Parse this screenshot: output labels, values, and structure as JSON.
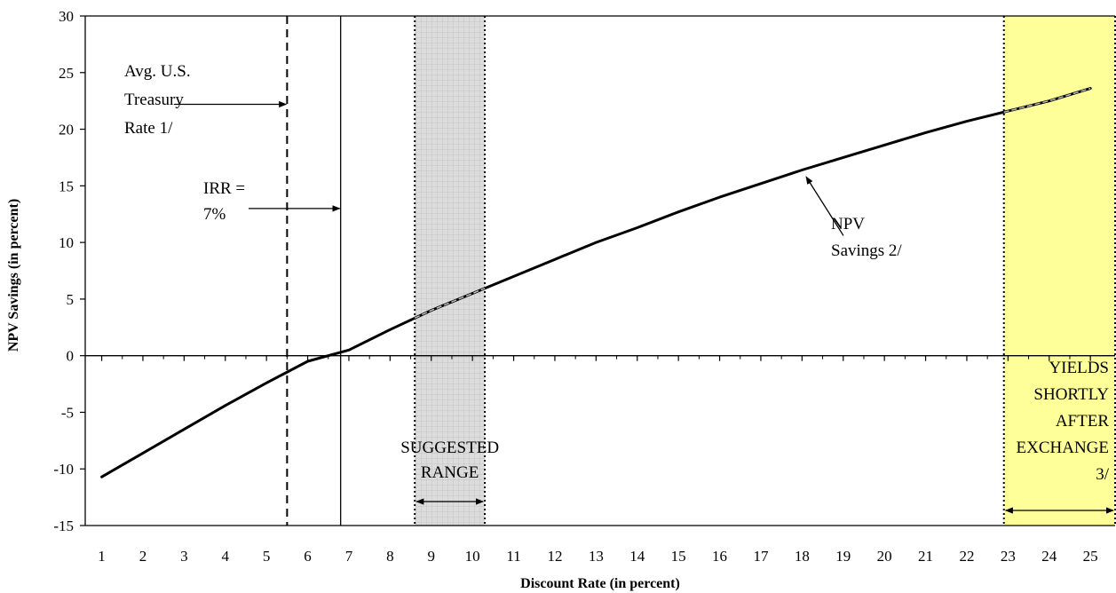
{
  "chart_data": {
    "type": "line",
    "title": "",
    "xlabel": "Discount Rate (in percent)",
    "ylabel": "NPV Savings (in percent)",
    "xlim": [
      0.6,
      25.6
    ],
    "ylim": [
      -15,
      30
    ],
    "x_ticks": [
      "1",
      "2",
      "3",
      "4",
      "5",
      "6",
      "7",
      "8",
      "9",
      "10",
      "11",
      "12",
      "13",
      "14",
      "15",
      "16",
      "17",
      "18",
      "19",
      "20",
      "21",
      "22",
      "23",
      "24",
      "25"
    ],
    "y_ticks": [
      "30",
      "25",
      "20",
      "15",
      "10",
      "5",
      "0",
      "-5",
      "-10",
      "-15"
    ],
    "grid": false,
    "series": [
      {
        "name": "",
        "x": [
          1,
          2,
          3,
          4,
          5,
          6,
          7,
          8,
          9,
          10,
          11,
          12,
          13,
          14,
          15,
          16,
          17,
          18,
          19,
          20,
          21,
          22,
          23,
          24,
          25
        ],
        "values": [
          -10.7,
          -8.6,
          -6.5,
          -4.4,
          -2.4,
          -0.5,
          0.5,
          2.3,
          4.0,
          5.5,
          7.0,
          8.5,
          10.0,
          11.3,
          12.7,
          14.0,
          15.2,
          16.4,
          17.5,
          18.6,
          19.7,
          20.7,
          21.6,
          22.5,
          23.6
        ]
      }
    ],
    "highlight_color": "#bdbdbd",
    "reference_lines": [
      {
        "x": 5.5,
        "style": "dashed"
      },
      {
        "x": 6.8,
        "style": "solid"
      }
    ],
    "shaded_regions": [
      {
        "x_from": 8.6,
        "x_to": 10.3,
        "color": "#d9d9d9",
        "hatch": true,
        "border": "dotted"
      },
      {
        "x_from": 22.9,
        "x_to": 25.6,
        "color": "#ffff99",
        "hatch": false,
        "border": "dotted"
      }
    ],
    "annotations": {
      "treasury": [
        "Avg. U.S.",
        "Treasury",
        "Rate 1/"
      ],
      "irr": [
        "IRR =",
        "7%"
      ],
      "npv": [
        "NPV",
        "Savings 2/"
      ],
      "suggested": [
        "SUGGESTED",
        "RANGE"
      ],
      "yields": [
        "YIELDS",
        "SHORTLY",
        "AFTER",
        "EXCHANGE",
        "3/"
      ]
    }
  }
}
